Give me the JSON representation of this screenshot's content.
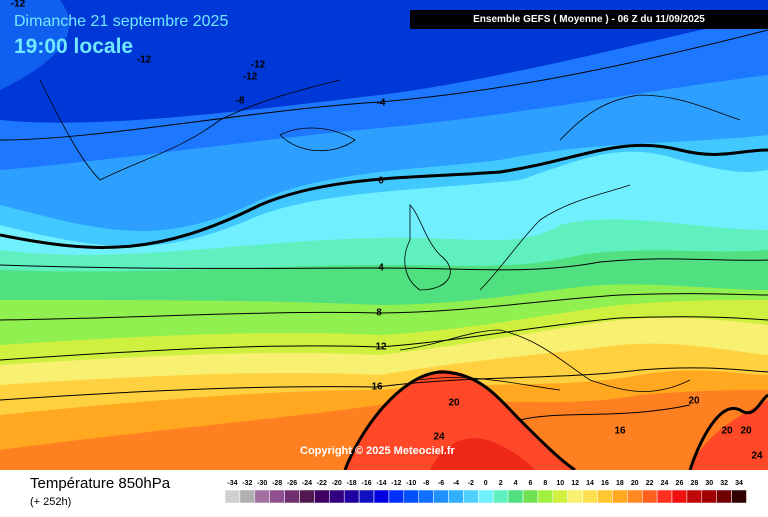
{
  "header": {
    "date": "Dimanche 21 septembre 2025",
    "time": "19:00 locale",
    "model": "Ensemble GEFS  ( Moyenne )  -  06 Z du 11/09/2025"
  },
  "contour_labels": [
    -12,
    -12,
    -12,
    -12,
    -8,
    -4,
    0,
    4,
    8,
    12,
    16,
    20,
    24,
    16,
    20,
    20,
    20,
    24
  ],
  "copyright": "Copyright © 2025 Meteociel.fr",
  "footer": {
    "title": "Température 850hPa",
    "lead": "(+ 252h)"
  },
  "legend": {
    "values": [
      -34,
      -32,
      -30,
      -28,
      -26,
      -24,
      -22,
      -20,
      -18,
      -16,
      -14,
      -12,
      -10,
      -8,
      -6,
      -4,
      -2,
      0,
      2,
      4,
      6,
      8,
      10,
      12,
      14,
      16,
      18,
      20,
      22,
      24,
      26,
      28,
      30,
      32,
      34
    ],
    "colors": [
      "#d0d0d0",
      "#b0b0b0",
      "#a070a0",
      "#905090",
      "#703070",
      "#501850",
      "#400060",
      "#300080",
      "#2000a0",
      "#1010c0",
      "#0000e0",
      "#0030ff",
      "#0050ff",
      "#1070ff",
      "#2090ff",
      "#30b0ff",
      "#50d0ff",
      "#70f0ff",
      "#60f0c0",
      "#50e080",
      "#70e050",
      "#a0f040",
      "#d0f040",
      "#f8f070",
      "#ffe050",
      "#ffc830",
      "#ffa820",
      "#ff8820",
      "#ff6020",
      "#ff3020",
      "#f01010",
      "#c00808",
      "#a00000",
      "#700000",
      "#300000"
    ]
  }
}
